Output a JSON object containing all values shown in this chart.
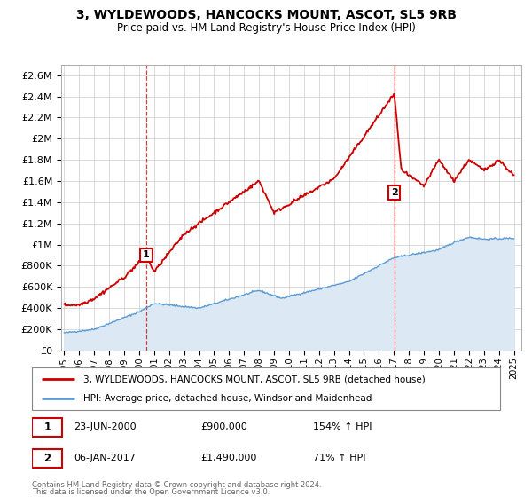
{
  "title": "3, WYLDEWOODS, HANCOCKS MOUNT, ASCOT, SL5 9RB",
  "subtitle": "Price paid vs. HM Land Registry's House Price Index (HPI)",
  "background_color": "#ffffff",
  "grid_color": "#cccccc",
  "red_color": "#cc0000",
  "blue_color": "#5b9bd5",
  "blue_fill_color": "#dce9f5",
  "sale1_year": 2000.47,
  "sale1_price": 900000,
  "sale1_label": "1",
  "sale1_date": "23-JUN-2000",
  "sale1_hpi_pct": "154%",
  "sale2_year": 2017.02,
  "sale2_price": 1490000,
  "sale2_label": "2",
  "sale2_date": "06-JAN-2017",
  "sale2_hpi_pct": "71%",
  "legend_entry1": "3, WYLDEWOODS, HANCOCKS MOUNT, ASCOT, SL5 9RB (detached house)",
  "legend_entry2": "HPI: Average price, detached house, Windsor and Maidenhead",
  "footer1": "Contains HM Land Registry data © Crown copyright and database right 2024.",
  "footer2": "This data is licensed under the Open Government Licence v3.0.",
  "ytick_labels": [
    "£0",
    "£200K",
    "£400K",
    "£600K",
    "£800K",
    "£1M",
    "£1.2M",
    "£1.4M",
    "£1.6M",
    "£1.8M",
    "£2M",
    "£2.2M",
    "£2.4M",
    "£2.6M"
  ],
  "ytick_values": [
    0,
    200000,
    400000,
    600000,
    800000,
    1000000,
    1200000,
    1400000,
    1600000,
    1800000,
    2000000,
    2200000,
    2400000,
    2600000
  ],
  "ylim": [
    0,
    2700000
  ],
  "xlim_start": 1994.8,
  "xlim_end": 2025.5
}
